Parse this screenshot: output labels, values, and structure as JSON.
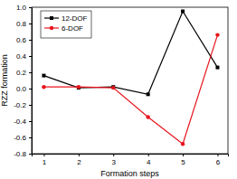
{
  "chart_data": {
    "type": "line",
    "x_label": "Formation steps",
    "y_label": "RZZ formation",
    "x": [
      1,
      2,
      3,
      4,
      5,
      6
    ],
    "series": [
      {
        "name": "12-DOF",
        "color": "#000000",
        "marker": "square",
        "line_style": "solid",
        "values": [
          0.16,
          0.01,
          0.02,
          -0.07,
          0.95,
          0.26
        ]
      },
      {
        "name": "6-DOF",
        "color": "#e8141c",
        "marker": "circle",
        "line_style": "solid",
        "values": [
          0.02,
          0.02,
          0.01,
          -0.35,
          -0.68,
          0.66
        ]
      }
    ],
    "xlim": [
      0.65,
      6.3
    ],
    "xticks": [
      1,
      2,
      3,
      4,
      5,
      6
    ],
    "ylim": [
      -0.8,
      1.0
    ],
    "yticks": [
      -0.8,
      -0.6,
      -0.4,
      -0.2,
      {
        "value": 0,
        "label": "0.0"
      },
      0.2,
      0.4,
      0.6,
      0.8,
      {
        "value": 1,
        "label": "1.0"
      }
    ],
    "grid": false,
    "legend": "upper left"
  }
}
